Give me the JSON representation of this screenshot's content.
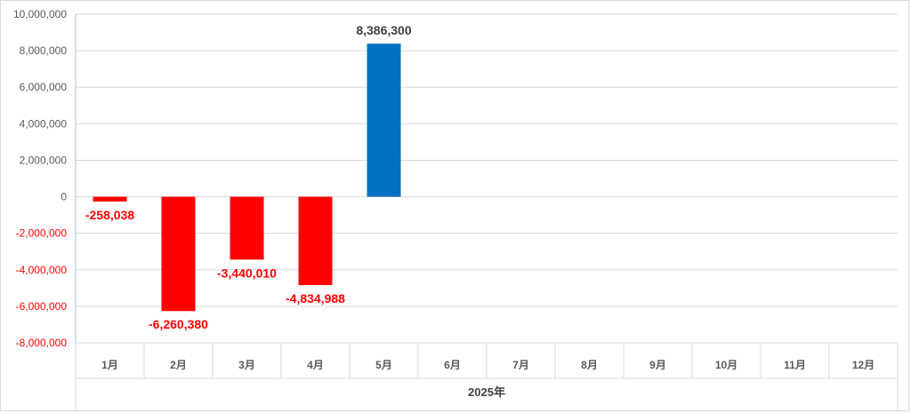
{
  "chart_data": {
    "type": "bar",
    "categories": [
      "1月",
      "2月",
      "3月",
      "4月",
      "5月",
      "6月",
      "7月",
      "8月",
      "9月",
      "10月",
      "11月",
      "12月"
    ],
    "values": [
      -258038,
      -6260380,
      -3440010,
      -4834988,
      8386300,
      null,
      null,
      null,
      null,
      null,
      null,
      null
    ],
    "data_labels": [
      "-258,038",
      "-6,260,380",
      "-3,440,010",
      "-4,834,988",
      "8,386,300",
      "",
      "",
      "",
      "",
      "",
      "",
      ""
    ],
    "group_label": "2025年",
    "title": "",
    "xlabel": "",
    "ylabel": "",
    "ylim": [
      -8000000,
      10000000
    ],
    "yticks": [
      10000000,
      8000000,
      6000000,
      4000000,
      2000000,
      0,
      -2000000,
      -4000000,
      -6000000,
      -8000000
    ],
    "ytick_labels": [
      "10,000,000",
      "8,000,000",
      "6,000,000",
      "4,000,000",
      "2,000,000",
      "0",
      "-2,000,000",
      "-4,000,000",
      "-6,000,000",
      "-8,000,000"
    ],
    "grid": true,
    "legend": "none",
    "colors": {
      "positive_bar": "#0070C0",
      "negative_bar": "#FF0000",
      "positive_label": "#404040",
      "negative_label": "#FF0000",
      "positive_tick": "#595959",
      "negative_tick": "#FF0000",
      "gridline": "#d9d9d9",
      "axis": "#9dc3e6"
    }
  }
}
